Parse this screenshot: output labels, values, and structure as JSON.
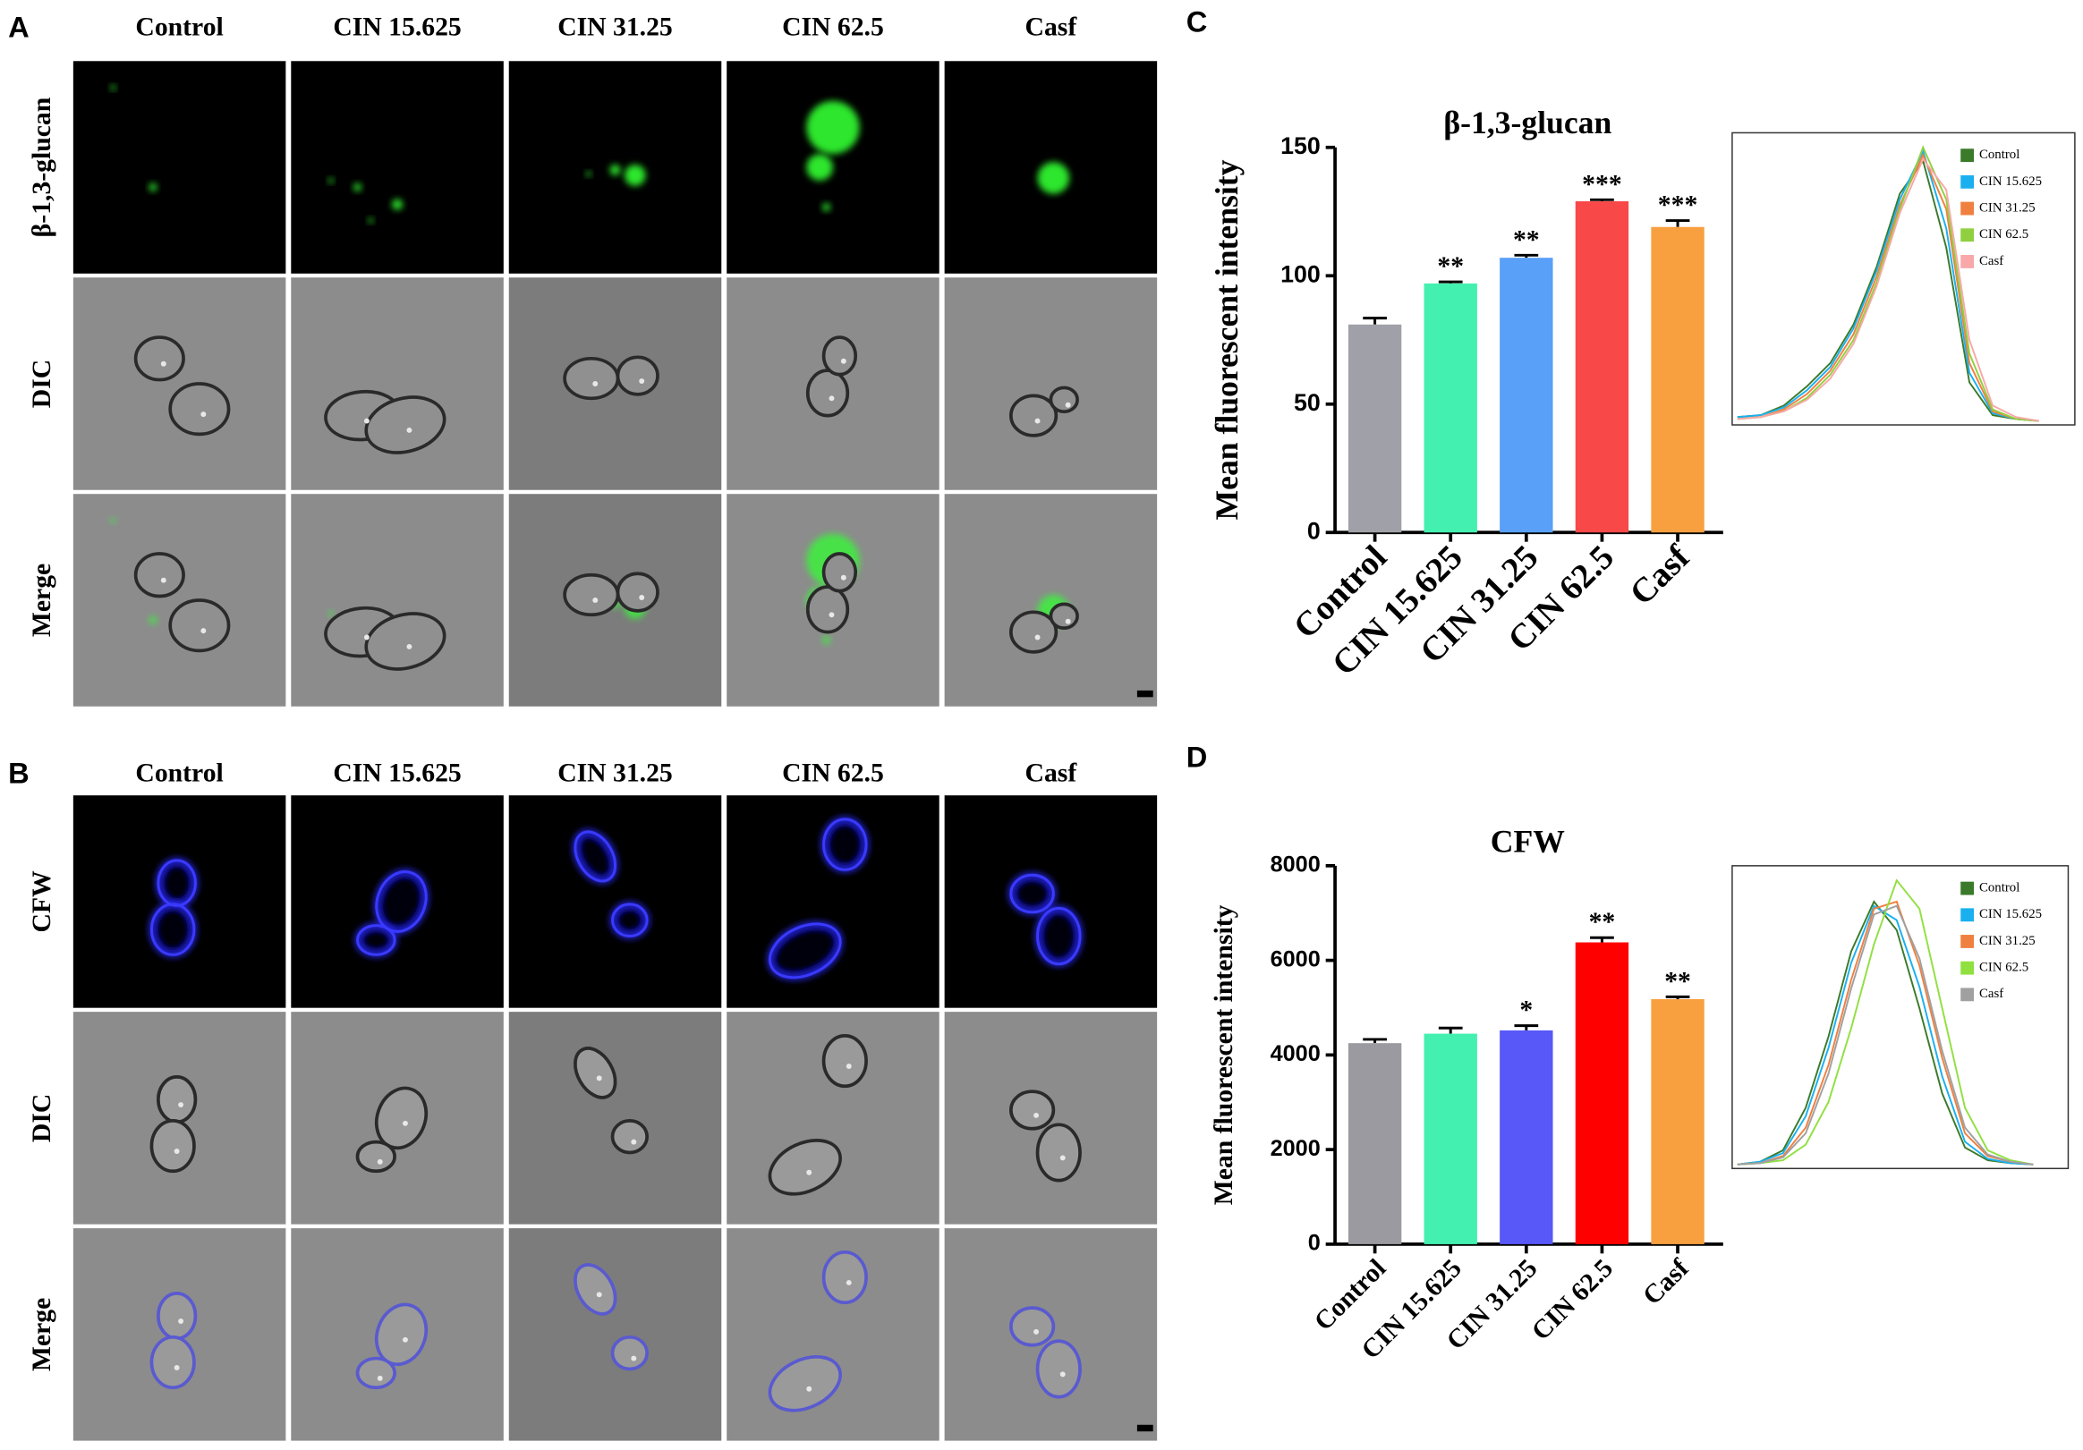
{
  "panels": [
    {
      "letter": "A",
      "columns": [
        "Control",
        "CIN 15.625",
        "CIN 31.25",
        "CIN 62.5",
        "Casf"
      ],
      "rows": [
        "β-1,3-glucan",
        "DIC",
        "Merge"
      ]
    },
    {
      "letter": "B",
      "columns": [
        "Control",
        "CIN 15.625",
        "CIN 31.25",
        "CIN 62.5",
        "Casf"
      ],
      "rows": [
        "CFW",
        "DIC",
        "Merge"
      ]
    }
  ],
  "chart_data": [
    {
      "type": "bar",
      "letter": "C",
      "title": "β-1,3-glucan",
      "ylabel": "Mean fluorescent intensity",
      "categories": [
        "Control",
        "CIN 15.625",
        "CIN 31.25",
        "CIN 62.5",
        "Casf"
      ],
      "values": [
        81,
        97,
        107,
        129,
        119
      ],
      "errors": [
        2.5,
        0.6,
        1,
        0.6,
        2.5
      ],
      "significance": [
        null,
        "**",
        "**",
        "***",
        "***"
      ],
      "colors": [
        "#a0a0a8",
        "#44f0b0",
        "#58a0f8",
        "#f84848",
        "#f8a040"
      ],
      "ylim": [
        0,
        150
      ],
      "yticks": [
        0,
        50,
        100,
        150
      ],
      "inset": {
        "series": [
          {
            "name": "Control",
            "color": "#3a7a2a",
            "values": [
              2,
              3,
              8,
              18,
              30,
              50,
              80,
              118,
              135,
              90,
              20,
              3,
              1,
              0
            ]
          },
          {
            "name": "CIN 15.625",
            "color": "#1ab0f0",
            "values": [
              2,
              3,
              7,
              16,
              28,
              48,
              78,
              115,
              140,
              100,
              25,
              4,
              1,
              0
            ]
          },
          {
            "name": "CIN 31.25",
            "color": "#f08040",
            "values": [
              1,
              2,
              6,
              14,
              26,
              45,
              75,
              112,
              138,
              110,
              30,
              5,
              1,
              0
            ]
          },
          {
            "name": "CIN 62.5",
            "color": "#90d040",
            "values": [
              1,
              2,
              5,
              12,
              24,
              42,
              72,
              110,
              142,
              115,
              35,
              6,
              1,
              0
            ]
          },
          {
            "name": "Casf",
            "color": "#f8a8a8",
            "values": [
              1,
              2,
              5,
              11,
              22,
              40,
              70,
              108,
              136,
              120,
              42,
              8,
              2,
              0
            ]
          }
        ]
      }
    },
    {
      "type": "bar",
      "letter": "D",
      "title": "CFW",
      "ylabel": "Mean fluorescent intensity",
      "categories": [
        "Control",
        "CIN 15.625",
        "CIN 31.25",
        "CIN 62.5",
        "Casf"
      ],
      "values": [
        4250,
        4450,
        4520,
        6380,
        5180
      ],
      "errors": [
        80,
        120,
        100,
        100,
        50
      ],
      "significance": [
        null,
        null,
        "*",
        "**",
        "**"
      ],
      "colors": [
        "#9a9aa0",
        "#44f0b0",
        "#5858f8",
        "#ff0000",
        "#f8a040"
      ],
      "ylim": [
        0,
        8000
      ],
      "yticks": [
        0,
        2000,
        4000,
        6000,
        8000
      ],
      "inset": {
        "series": [
          {
            "name": "Control",
            "color": "#3a7a2a",
            "values": [
              0,
              2,
              10,
              40,
              90,
              150,
              185,
              165,
              110,
              50,
              12,
              3,
              1,
              0
            ]
          },
          {
            "name": "CIN 15.625",
            "color": "#1ab0f0",
            "values": [
              0,
              2,
              8,
              34,
              82,
              142,
              182,
              172,
              125,
              62,
              16,
              4,
              1,
              0
            ]
          },
          {
            "name": "CIN 31.25",
            "color": "#f08040",
            "values": [
              0,
              1,
              6,
              26,
              70,
              130,
              180,
              185,
              140,
              75,
              22,
              6,
              2,
              0
            ]
          },
          {
            "name": "CIN 62.5",
            "color": "#90e040",
            "values": [
              0,
              1,
              3,
              14,
              44,
              96,
              155,
              200,
              180,
              110,
              40,
              10,
              3,
              0
            ]
          },
          {
            "name": "Casf",
            "color": "#a0a0a0",
            "values": [
              0,
              1,
              5,
              22,
              64,
              124,
              176,
              182,
              145,
              80,
              26,
              7,
              2,
              0
            ]
          }
        ]
      }
    }
  ]
}
